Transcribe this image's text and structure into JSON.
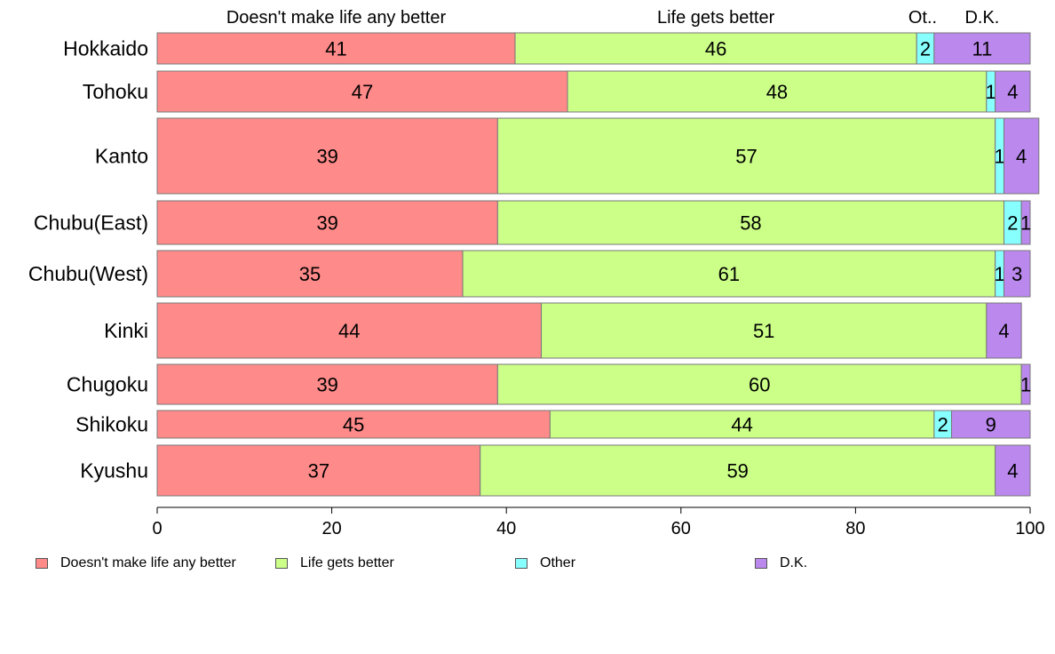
{
  "chart_data": {
    "type": "bar",
    "orientation": "horizontal",
    "stacked": true,
    "categories": [
      "Hokkaido",
      "Tohoku",
      "Kanto",
      "Chubu(East)",
      "Chubu(West)",
      "Kinki",
      "Chugoku",
      "Shikoku",
      "Kyushu"
    ],
    "series": [
      {
        "name": "Doesn't make life any better",
        "values": [
          41,
          47,
          39,
          39,
          35,
          44,
          39,
          45,
          37
        ],
        "color": "#ff8a8a"
      },
      {
        "name": "Life gets better",
        "values": [
          46,
          48,
          57,
          58,
          61,
          51,
          60,
          44,
          59
        ],
        "color": "#ccff88"
      },
      {
        "name": "Other",
        "values": [
          2,
          1,
          1,
          2,
          1,
          0,
          0,
          2,
          0
        ],
        "color": "#88ffff"
      },
      {
        "name": "D.K.",
        "values": [
          11,
          4,
          4,
          1,
          3,
          4,
          1,
          9,
          4
        ],
        "color": "#bb88ee"
      }
    ],
    "top_labels": [
      "Doesn't make life any better",
      "Life gets better",
      "Ot..",
      "D.K."
    ],
    "xlim": [
      0,
      100
    ],
    "x_ticks": [
      "0",
      "20",
      "40",
      "60",
      "80",
      "100"
    ],
    "grid": false,
    "legend_position": "bottom"
  }
}
